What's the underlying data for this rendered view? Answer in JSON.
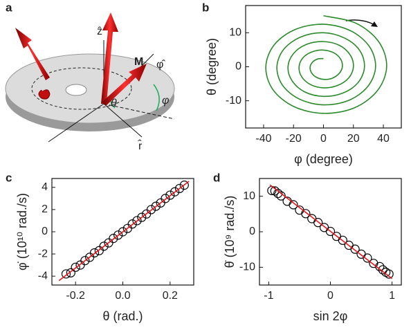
{
  "diagram": {
    "panel_label": "a",
    "labels": [
      "ẑ",
      "φ̂",
      "M",
      "θ",
      "φ",
      "r̂"
    ]
  },
  "chart_data": [
    {
      "type": "line",
      "panel_label": "b",
      "xlabel": "φ (degree)",
      "ylabel": "θ (degree)",
      "xlim": [
        -52,
        52
      ],
      "ylim": [
        -18,
        18
      ],
      "xticks": [
        -40,
        -20,
        0,
        20,
        40
      ],
      "yticks": [
        -10,
        0,
        10
      ],
      "series": [
        {
          "color": "#2a8a2a",
          "mode": "line",
          "x": [
            0,
            21.7,
            37.0,
            42.2,
            35.9,
            20.5,
            0,
            -19.8,
            -33.8,
            -38.5,
            -32.8,
            -18.6,
            0,
            18.0,
            30.6,
            34.8,
            29.6,
            16.8,
            0,
            -16.1,
            -27.4,
            -31.1,
            -26.4,
            -14.9,
            0,
            14.3,
            24.2,
            27.4,
            23.2,
            13.1,
            0,
            -12.5,
            -21.0,
            -23.7,
            -20.0,
            -11.2,
            0,
            10.6,
            17.8,
            20.0,
            16.8,
            9.4,
            0,
            -8.8,
            -14.6,
            -16.3,
            -13.6,
            -7.5,
            0,
            6.9,
            11.4,
            12.6,
            10.4,
            5.7,
            0,
            -5.1,
            -8.2,
            -8.9,
            -7.2,
            -3.8,
            0
          ],
          "y": [
            15,
            12.8,
            7.3,
            0,
            -7.1,
            -12.1,
            -13.7,
            -11.7,
            -6.7,
            0,
            6.5,
            11.0,
            12.5,
            10.6,
            6.0,
            0,
            -5.8,
            -9.9,
            -11.2,
            -9.5,
            -5.4,
            0,
            5.2,
            8.8,
            10.0,
            8.4,
            4.8,
            0,
            -4.6,
            -7.7,
            -8.7,
            -7.4,
            -4.1,
            0,
            3.9,
            6.6,
            7.4,
            6.3,
            3.5,
            0,
            -3.3,
            -5.5,
            -6.2,
            -5.2,
            -2.9,
            0,
            2.7,
            4.4,
            4.9,
            4.1,
            2.3,
            0,
            -2.0,
            -3.4,
            -3.7,
            -3.0,
            -1.6,
            0,
            1.4,
            2.3,
            2.4
          ]
        }
      ]
    },
    {
      "type": "scatter",
      "panel_label": "c",
      "xlabel": "θ (rad.)",
      "ylabel": "φ̇ (10¹⁰ rad./s)",
      "xlim": [
        -0.3,
        0.3
      ],
      "ylim": [
        -4.8,
        4.8
      ],
      "xticks": [
        -0.2,
        {
          "value": 0,
          "label": "0.0"
        },
        0.2
      ],
      "yticks": [
        -4,
        -2,
        0,
        2,
        4
      ],
      "series": [
        {
          "color": "#000000",
          "mode": "markers",
          "x": [
            -0.24,
            -0.22,
            -0.2,
            -0.18,
            -0.16,
            -0.14,
            -0.12,
            -0.1,
            -0.08,
            -0.06,
            -0.04,
            -0.02,
            0,
            0.02,
            0.04,
            0.06,
            0.08,
            0.1,
            0.12,
            0.14,
            0.16,
            0.18,
            0.2,
            0.22,
            0.24,
            0.26
          ],
          "y": [
            -3.8,
            -3.7,
            -3.2,
            -3.0,
            -2.6,
            -2.3,
            -1.9,
            -1.7,
            -1.3,
            -1.0,
            -0.6,
            -0.3,
            0.0,
            0.3,
            0.7,
            1.0,
            1.3,
            1.6,
            2.0,
            2.3,
            2.6,
            3.0,
            3.3,
            3.6,
            3.9,
            4.2
          ]
        },
        {
          "color": "#e8141a",
          "mode": "line",
          "x": [
            -0.27,
            0.28
          ],
          "y": [
            -4.4,
            4.55
          ]
        }
      ]
    },
    {
      "type": "scatter",
      "panel_label": "d",
      "xlabel": "sin 2φ",
      "ylabel": "θ̇ (10⁹ rad./s)",
      "xlim": [
        -1.15,
        1.15
      ],
      "ylim": [
        -15,
        15
      ],
      "xticks": [
        -1,
        0,
        1
      ],
      "yticks": [
        -10,
        0,
        10
      ],
      "series": [
        {
          "color": "#000000",
          "mode": "markers",
          "x": [
            -0.95,
            -0.9,
            -0.85,
            -0.8,
            -0.7,
            -0.6,
            -0.5,
            -0.4,
            -0.3,
            -0.2,
            -0.1,
            0,
            0.1,
            0.2,
            0.3,
            0.4,
            0.5,
            0.6,
            0.7,
            0.8,
            0.85,
            0.9,
            0.95
          ],
          "y": [
            11.6,
            11.5,
            10.8,
            10.1,
            8.6,
            7.6,
            6.1,
            5.1,
            3.7,
            2.6,
            1.2,
            0.1,
            -1.3,
            -2.4,
            -3.8,
            -4.9,
            -6.3,
            -7.4,
            -8.9,
            -9.8,
            -10.7,
            -11.4,
            -11.9
          ]
        },
        {
          "color": "#e8141a",
          "mode": "line",
          "x": [
            -0.98,
            1.0
          ],
          "y": [
            13.2,
            -13.2
          ]
        }
      ]
    }
  ]
}
